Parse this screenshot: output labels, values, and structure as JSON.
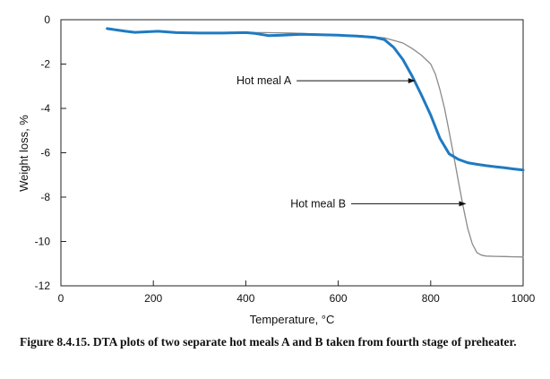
{
  "chart_data": {
    "type": "line",
    "xlabel": "Temperature, °C",
    "ylabel": "Weight loss, %",
    "xlim": [
      0,
      1000
    ],
    "ylim": [
      -12,
      0
    ],
    "xticks": [
      0,
      200,
      400,
      600,
      800,
      1000
    ],
    "yticks": [
      0,
      -2,
      -4,
      -6,
      -8,
      -10,
      -12
    ],
    "grid": false,
    "series": [
      {
        "name": "Hot meal A",
        "color": "#1f7ac1",
        "x": [
          100,
          140,
          160,
          210,
          250,
          300,
          350,
          400,
          420,
          450,
          480,
          520,
          560,
          600,
          640,
          680,
          700,
          720,
          740,
          760,
          780,
          800,
          820,
          840,
          860,
          880,
          900,
          920,
          940,
          960,
          980,
          1000
        ],
        "y": [
          -0.4,
          -0.52,
          -0.57,
          -0.52,
          -0.58,
          -0.6,
          -0.6,
          -0.58,
          -0.62,
          -0.72,
          -0.7,
          -0.66,
          -0.68,
          -0.7,
          -0.74,
          -0.8,
          -0.9,
          -1.25,
          -1.8,
          -2.55,
          -3.4,
          -4.3,
          -5.35,
          -6.05,
          -6.3,
          -6.45,
          -6.52,
          -6.58,
          -6.63,
          -6.68,
          -6.73,
          -6.78
        ]
      },
      {
        "name": "Hot meal B",
        "color": "#8a8a8a",
        "x": [
          100,
          140,
          160,
          210,
          250,
          300,
          350,
          400,
          440,
          500,
          560,
          600,
          650,
          700,
          740,
          760,
          780,
          800,
          810,
          820,
          830,
          840,
          850,
          860,
          870,
          880,
          890,
          900,
          910,
          920,
          940,
          960,
          980,
          1000
        ],
        "y": [
          -0.4,
          -0.52,
          -0.57,
          -0.52,
          -0.58,
          -0.6,
          -0.6,
          -0.58,
          -0.58,
          -0.6,
          -0.65,
          -0.68,
          -0.72,
          -0.82,
          -1.05,
          -1.3,
          -1.6,
          -2.0,
          -2.45,
          -3.15,
          -4.0,
          -5.05,
          -6.15,
          -7.3,
          -8.4,
          -9.4,
          -10.1,
          -10.5,
          -10.62,
          -10.66,
          -10.67,
          -10.68,
          -10.69,
          -10.7
        ]
      }
    ],
    "annotations": [
      {
        "text": "Hot meal A",
        "label_x": 510,
        "label_y": -2.75,
        "arrow_to_x": 765,
        "arrow_to_y": -2.75
      },
      {
        "text": "Hot meal B",
        "label_x": 628,
        "label_y": -8.3,
        "arrow_to_x": 875,
        "arrow_to_y": -8.3
      }
    ]
  },
  "caption": "Figure 8.4.15. DTA plots of two separate hot meals A and B taken from fourth stage of preheater."
}
